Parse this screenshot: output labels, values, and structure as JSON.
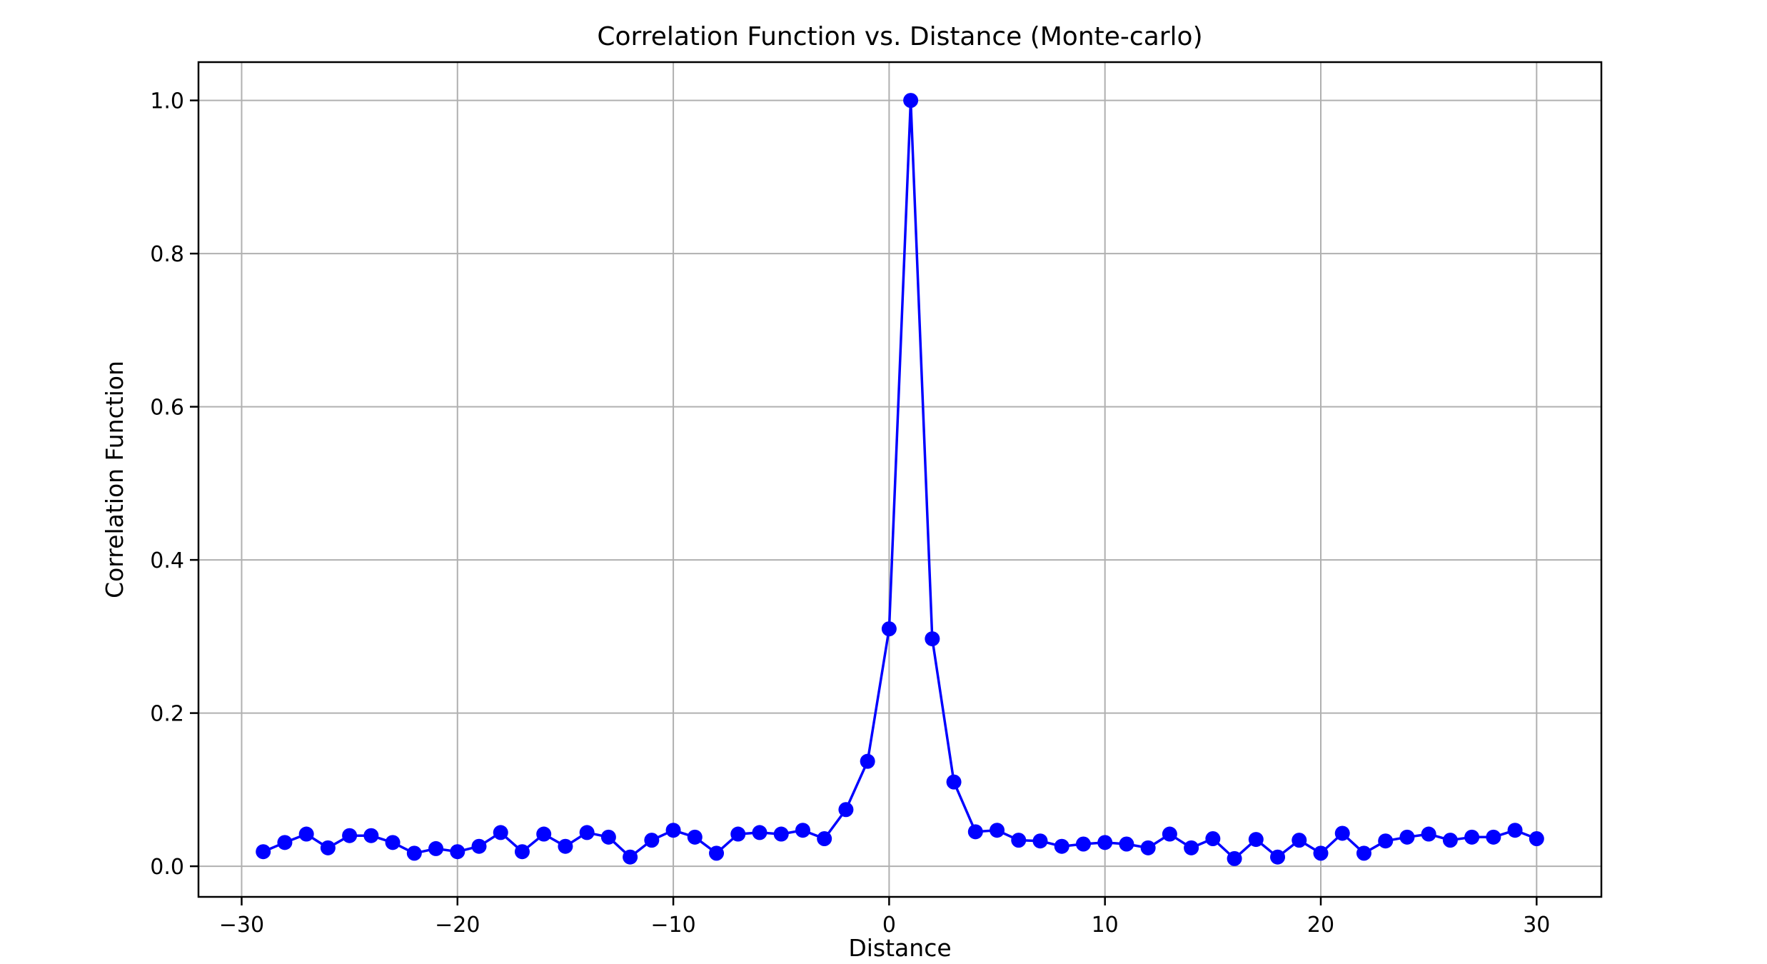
{
  "chart_data": {
    "type": "line",
    "title": "Correlation Function vs. Distance  (Monte-carlo)",
    "xlabel": "Distance",
    "ylabel": "Correlation Function",
    "xlim": [
      -32,
      33
    ],
    "ylim": [
      -0.04,
      1.05
    ],
    "xticks": [
      -30,
      -20,
      -10,
      0,
      10,
      20,
      30
    ],
    "xtick_labels": [
      "−30",
      "−20",
      "−10",
      "0",
      "10",
      "20",
      "30"
    ],
    "yticks": [
      0.0,
      0.2,
      0.4,
      0.6,
      0.8,
      1.0
    ],
    "ytick_labels": [
      "0.0",
      "0.2",
      "0.4",
      "0.6",
      "0.8",
      "1.0"
    ],
    "grid": true,
    "color": "#0000ff",
    "marker": "circle",
    "x": [
      -29,
      -28,
      -27,
      -26,
      -25,
      -24,
      -23,
      -22,
      -21,
      -20,
      -19,
      -18,
      -17,
      -16,
      -15,
      -14,
      -13,
      -12,
      -11,
      -10,
      -9,
      -8,
      -7,
      -6,
      -5,
      -4,
      -3,
      -2,
      -1,
      0,
      1,
      2,
      3,
      4,
      5,
      6,
      7,
      8,
      9,
      10,
      11,
      12,
      13,
      14,
      15,
      16,
      17,
      18,
      19,
      20,
      21,
      22,
      23,
      24,
      25,
      26,
      27,
      28,
      29,
      30
    ],
    "y": [
      0.019,
      0.031,
      0.042,
      0.024,
      0.04,
      0.04,
      0.031,
      0.017,
      0.023,
      0.019,
      0.026,
      0.044,
      0.019,
      0.042,
      0.026,
      0.044,
      0.038,
      0.012,
      0.034,
      0.047,
      0.038,
      0.017,
      0.042,
      0.044,
      0.042,
      0.047,
      0.036,
      0.074,
      0.137,
      0.31,
      1.0,
      0.297,
      0.11,
      0.045,
      0.047,
      0.034,
      0.033,
      0.026,
      0.029,
      0.031,
      0.029,
      0.024,
      0.042,
      0.024,
      0.036,
      0.01,
      0.035,
      0.012,
      0.034,
      0.017,
      0.043,
      0.017,
      0.033,
      0.038,
      0.042,
      0.034,
      0.038,
      0.038,
      0.047,
      0.036
    ]
  }
}
